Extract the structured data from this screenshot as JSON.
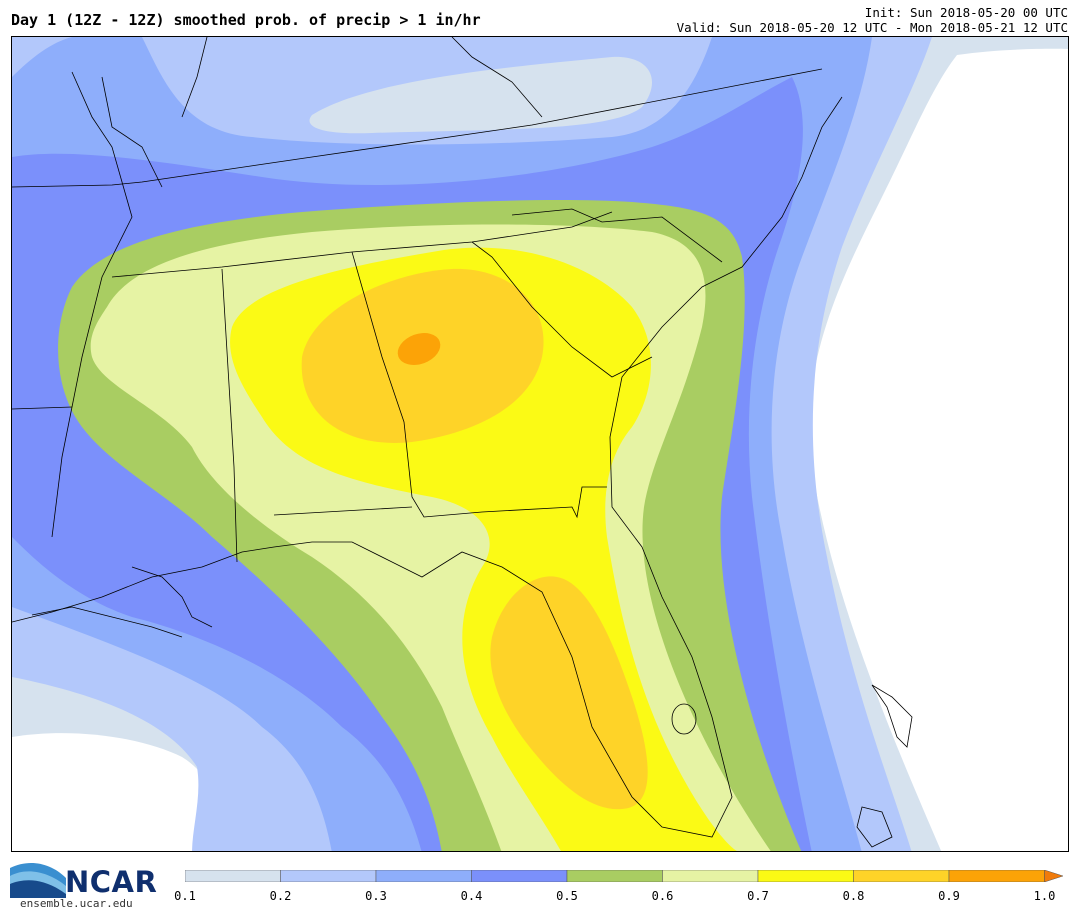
{
  "header": {
    "title": "Day 1 (12Z - 12Z) smoothed prob. of precip > 1 in/hr",
    "init": "Init: Sun 2018-05-20 00 UTC",
    "valid": "Valid: Sun 2018-05-20 12 UTC - Mon 2018-05-21 12 UTC"
  },
  "logo": {
    "name": "NCAR",
    "url": "ensemble.ucar.edu"
  },
  "colorbar": {
    "labels": [
      "0.1",
      "0.2",
      "0.3",
      "0.4",
      "0.5",
      "0.6",
      "0.7",
      "0.8",
      "0.9",
      "1.0"
    ],
    "colors": [
      "#d6e2ee",
      "#b3c8fb",
      "#8eaefb",
      "#7b90fb",
      "#a9cd62",
      "#e6f3a4",
      "#fbfa15",
      "#fed328",
      "#fca307",
      "#f07b0b"
    ]
  },
  "map": {
    "region": "Southeastern United States",
    "field": "probability of precipitation > 1 in/hr",
    "max_value_approx": 0.9
  }
}
